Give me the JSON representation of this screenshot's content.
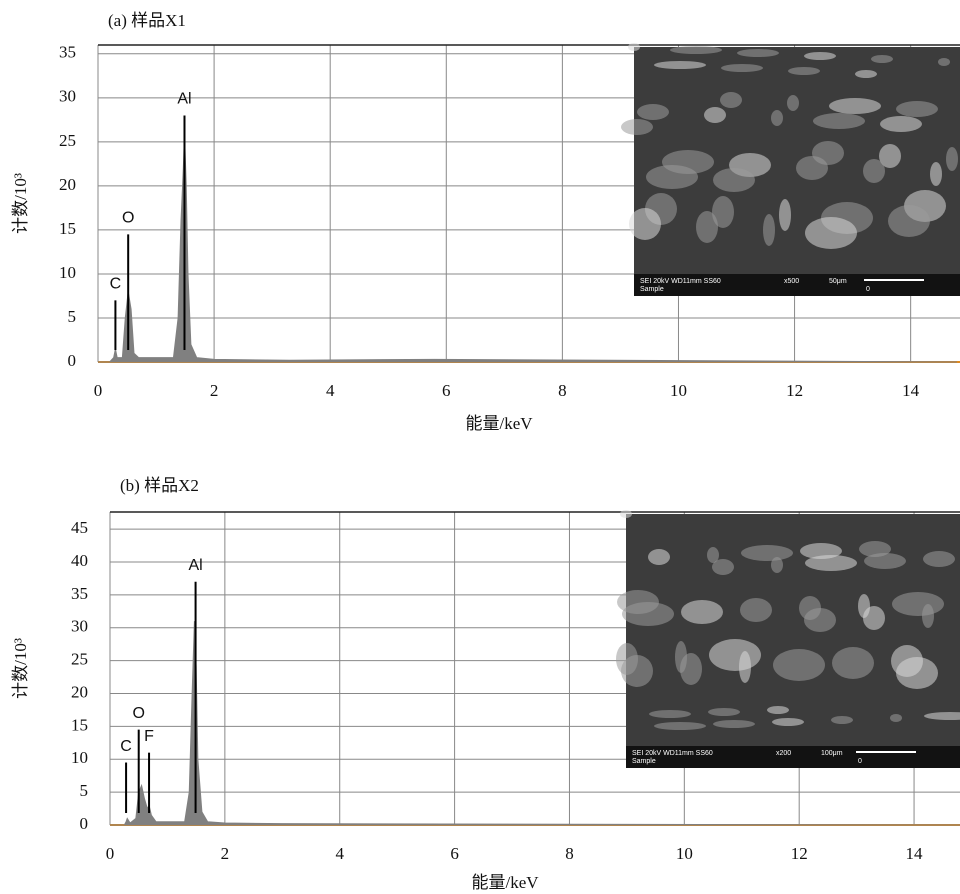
{
  "chart_data": [
    {
      "type": "area",
      "title": "(a) 样品X1",
      "xlabel": "能量/keV",
      "ylabel": "计数/10³",
      "x": [
        0,
        0.2,
        0.27,
        0.3,
        0.33,
        0.42,
        0.47,
        0.52,
        0.57,
        0.62,
        0.7,
        1.0,
        1.3,
        1.38,
        1.43,
        1.47,
        1.49,
        1.52,
        1.55,
        1.6,
        1.7,
        2.0,
        3.3,
        5.8,
        14.8
      ],
      "values": [
        0,
        0,
        0.5,
        1.5,
        0.5,
        0.5,
        5,
        8,
        6,
        1,
        0.5,
        0.5,
        0.5,
        5,
        16,
        22,
        26,
        20,
        10,
        2,
        0.5,
        0.3,
        0.2,
        0.3,
        0
      ],
      "color": "#808080",
      "xlim": [
        0,
        14.85
      ],
      "xticks": [
        0,
        2,
        4,
        6,
        8,
        10,
        12,
        14
      ],
      "ylim": [
        0,
        36
      ],
      "yticks": [
        0,
        5,
        10,
        15,
        20,
        25,
        30,
        35
      ],
      "grid": true,
      "annotations": [
        {
          "text": "C",
          "x": 0.3,
          "y": 7
        },
        {
          "text": "O",
          "x": 0.52,
          "y": 14.5
        },
        {
          "text": "Al",
          "x": 1.49,
          "y": 28
        }
      ],
      "inset_text": [
        "SEI  20kV   WD11mm SS60",
        "x500",
        "50μm",
        "Sample",
        "0"
      ]
    },
    {
      "type": "area",
      "title": "(b) 样品X2",
      "xlabel": "能量/keV",
      "ylabel": "计数/10³",
      "x": [
        0,
        0.25,
        0.28,
        0.3,
        0.35,
        0.45,
        0.5,
        0.55,
        0.6,
        0.65,
        0.68,
        0.72,
        0.8,
        1.0,
        1.3,
        1.38,
        1.43,
        1.47,
        1.5,
        1.53,
        1.6,
        1.7,
        2.0,
        3.0,
        14.8
      ],
      "values": [
        0,
        0,
        0.5,
        1,
        0.3,
        1,
        5,
        6,
        4,
        2.5,
        3,
        1.5,
        0.5,
        0.5,
        0.5,
        5,
        20,
        31,
        24,
        10,
        2,
        0.5,
        0.3,
        0.2,
        0
      ],
      "color": "#808080",
      "xlim": [
        0,
        14.8
      ],
      "xticks": [
        0,
        2,
        4,
        6,
        8,
        10,
        12,
        14
      ],
      "ylim": [
        0,
        47.6
      ],
      "yticks": [
        0,
        5,
        10,
        15,
        20,
        25,
        30,
        35,
        40,
        45
      ],
      "grid": true,
      "annotations": [
        {
          "text": "C",
          "x": 0.28,
          "y": 9.5
        },
        {
          "text": "O",
          "x": 0.5,
          "y": 14.5
        },
        {
          "text": "F",
          "x": 0.68,
          "y": 11
        },
        {
          "text": "Al",
          "x": 1.49,
          "y": 37
        }
      ],
      "inset_text": [
        "SEI  20kV   WD11mm SS60",
        "x200",
        "100μm",
        "Sample",
        "0"
      ]
    }
  ]
}
